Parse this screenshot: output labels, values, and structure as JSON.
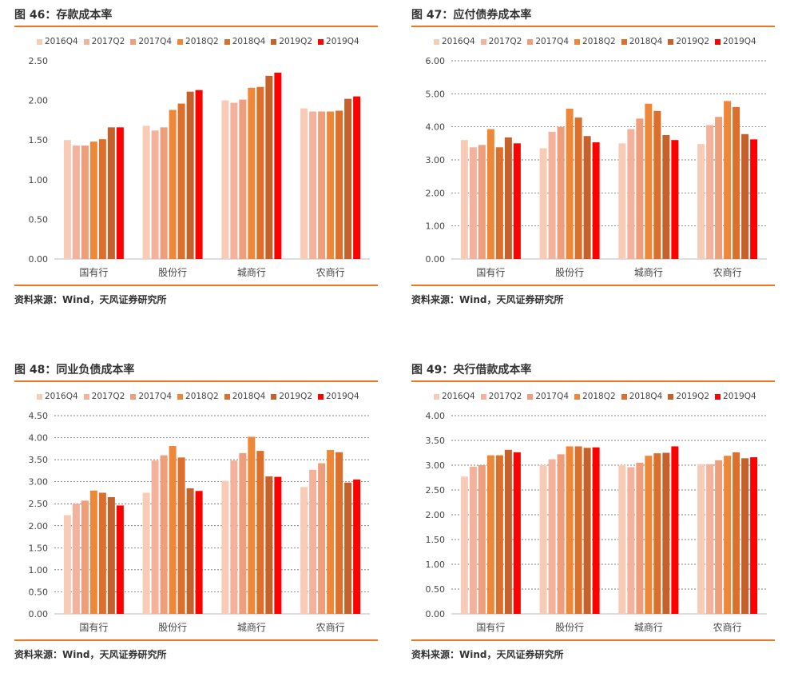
{
  "legend_colors": [
    "#F8CBB7",
    "#F4B29C",
    "#EE9E7A",
    "#EE8838",
    "#DC6F2B",
    "#C5612A",
    "#FF0000"
  ],
  "grid_style_dashed": true,
  "chart_data": [
    {
      "type": "bar",
      "panel_title": "图 46：存款成本率",
      "source": "资料来源：Wind，天风证券研究所",
      "series_names": [
        "2016Q4",
        "2017Q2",
        "2017Q4",
        "2018Q2",
        "2018Q4",
        "2019Q2",
        "2019Q4"
      ],
      "categories": [
        "国有行",
        "股份行",
        "城商行",
        "农商行"
      ],
      "ylim": [
        0,
        2.5
      ],
      "yticks": [
        "0.00",
        "0.50",
        "1.00",
        "1.50",
        "2.00",
        "2.50"
      ],
      "grid": false,
      "values": [
        [
          1.5,
          1.43,
          1.43,
          1.48,
          1.51,
          1.66,
          1.66
        ],
        [
          1.68,
          1.62,
          1.66,
          1.88,
          1.96,
          2.11,
          2.13
        ],
        [
          2.0,
          1.97,
          2.01,
          2.16,
          2.17,
          2.31,
          2.35
        ],
        [
          1.9,
          1.86,
          1.86,
          1.86,
          1.87,
          2.02,
          2.05
        ]
      ]
    },
    {
      "type": "bar",
      "panel_title": "图 47：应付债券成本率",
      "source": "资料来源：Wind，天风证券研究所",
      "series_names": [
        "2016Q4",
        "2017Q2",
        "2017Q4",
        "2018Q2",
        "2018Q4",
        "2019Q2",
        "2019Q4"
      ],
      "categories": [
        "国有行",
        "股份行",
        "城商行",
        "农商行"
      ],
      "ylim": [
        0,
        6.0
      ],
      "yticks": [
        "0.00",
        "1.00",
        "2.00",
        "3.00",
        "4.00",
        "5.00",
        "6.00"
      ],
      "grid": true,
      "values": [
        [
          3.6,
          3.38,
          3.45,
          3.93,
          3.38,
          3.68,
          3.5
        ],
        [
          3.35,
          3.85,
          4.0,
          4.55,
          4.28,
          3.72,
          3.53
        ],
        [
          3.5,
          3.93,
          4.25,
          4.7,
          4.48,
          3.75,
          3.6
        ],
        [
          3.48,
          4.05,
          4.3,
          4.78,
          4.6,
          3.78,
          3.62
        ]
      ]
    },
    {
      "type": "bar",
      "panel_title": "图 48：同业负债成本率",
      "source": "资料来源：Wind，天风证券研究所",
      "series_names": [
        "2016Q4",
        "2017Q2",
        "2017Q4",
        "2018Q2",
        "2018Q4",
        "2019Q2",
        "2019Q4"
      ],
      "categories": [
        "国有行",
        "股份行",
        "城商行",
        "农商行"
      ],
      "ylim": [
        0,
        4.5
      ],
      "yticks": [
        "0.00",
        "0.50",
        "1.00",
        "1.50",
        "2.00",
        "2.50",
        "3.00",
        "3.50",
        "4.00",
        "4.50"
      ],
      "grid": true,
      "values": [
        [
          2.24,
          2.5,
          2.57,
          2.8,
          2.75,
          2.65,
          2.46
        ],
        [
          2.75,
          3.48,
          3.6,
          3.81,
          3.55,
          2.85,
          2.79
        ],
        [
          3.02,
          3.48,
          3.65,
          4.02,
          3.7,
          3.12,
          3.11
        ],
        [
          2.88,
          3.27,
          3.42,
          3.72,
          3.67,
          2.98,
          3.05
        ]
      ]
    },
    {
      "type": "bar",
      "panel_title": "图 49：央行借款成本率",
      "source": "资料来源：Wind，天风证券研究所",
      "series_names": [
        "2016Q4",
        "2017Q2",
        "2017Q4",
        "2018Q2",
        "2018Q4",
        "2019Q2",
        "2019Q4"
      ],
      "categories": [
        "国有行",
        "股份行",
        "城商行",
        "农商行"
      ],
      "ylim": [
        0,
        4.0
      ],
      "yticks": [
        "0.00",
        "0.50",
        "1.00",
        "1.50",
        "2.00",
        "2.50",
        "3.00",
        "3.50",
        "4.00"
      ],
      "grid": true,
      "values": [
        [
          2.77,
          2.97,
          3.0,
          3.2,
          3.2,
          3.31,
          3.26
        ],
        [
          3.0,
          3.12,
          3.22,
          3.38,
          3.38,
          3.35,
          3.36
        ],
        [
          3.0,
          2.96,
          3.05,
          3.19,
          3.24,
          3.25,
          3.38
        ],
        [
          3.02,
          3.02,
          3.1,
          3.19,
          3.26,
          3.14,
          3.16
        ]
      ]
    }
  ]
}
